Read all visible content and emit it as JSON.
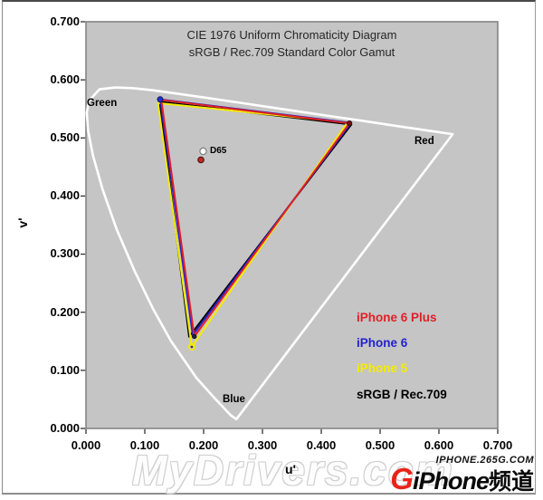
{
  "title": {
    "line1": "CIE 1976 Uniform Chromaticity Diagram",
    "line2": "sRGB / Rec.709 Standard Color Gamut"
  },
  "axes": {
    "x_label": "u'",
    "y_label": "v'",
    "x_tick_labels": [
      "0.000",
      "0.100",
      "0.200",
      "0.300",
      "0.400",
      "0.500",
      "0.600",
      "0.700"
    ],
    "y_tick_labels": [
      "0.700",
      "0.600",
      "0.500",
      "0.400",
      "0.300",
      "0.200",
      "0.100",
      "0.000"
    ]
  },
  "region_labels": {
    "green": "Green",
    "red": "Red",
    "blue": "Blue"
  },
  "d65_label": "D65",
  "legend": [
    {
      "label": "iPhone 6 Plus",
      "color": "#e01f26"
    },
    {
      "label": "iPhone 6",
      "color": "#2222cc"
    },
    {
      "label": "iPhone 5",
      "color": "#f5ec00"
    },
    {
      "label": "sRGB / Rec.709",
      "color": "#000000"
    }
  ],
  "watermark": "MyDrivers.com",
  "logo": {
    "site": "IPHONE.265G.COM",
    "g": "G",
    "name": "iPhone",
    "suffix": "频道"
  },
  "chart_data": {
    "type": "line",
    "title": "CIE 1976 Uniform Chromaticity Diagram",
    "subtitle": "sRGB / Rec.709 Standard Color Gamut",
    "xlabel": "u'",
    "ylabel": "v'",
    "xlim": [
      0,
      0.7
    ],
    "ylim": [
      0,
      0.7
    ],
    "x_ticks": [
      0,
      0.1,
      0.2,
      0.3,
      0.4,
      0.5,
      0.6,
      0.7
    ],
    "y_ticks": [
      0,
      0.1,
      0.2,
      0.3,
      0.4,
      0.5,
      0.6,
      0.7
    ],
    "grid": false,
    "legend_position": "inside lower right",
    "plot_bg": "#c5c5c5",
    "plot_border": "#7f7f7f",
    "locus_color": "#ffffff",
    "series": [
      {
        "name": "iPhone 6 Plus",
        "color": "#e01f26",
        "primaries": {
          "green": {
            "u": 0.128,
            "v": 0.5655
          },
          "red": {
            "u": 0.4478,
            "v": 0.5252
          },
          "blue": {
            "u": 0.1842,
            "v": 0.1582
          }
        }
      },
      {
        "name": "iPhone 6",
        "color": "#2222cc",
        "primaries": {
          "green": {
            "u": 0.1262,
            "v": 0.5662
          },
          "red": {
            "u": 0.4505,
            "v": 0.5258
          },
          "blue": {
            "u": 0.1816,
            "v": 0.1608
          }
        }
      },
      {
        "name": "iPhone 5",
        "color": "#f5ec00",
        "primaries": {
          "green": {
            "u": 0.1225,
            "v": 0.5602
          },
          "red": {
            "u": 0.4446,
            "v": 0.5268
          },
          "blue": {
            "u": 0.1798,
            "v": 0.1404
          }
        }
      },
      {
        "name": "sRGB / Rec.709",
        "color": "#000000",
        "primaries": {
          "green": {
            "u": 0.125,
            "v": 0.5625
          },
          "red": {
            "u": 0.451,
            "v": 0.523
          },
          "blue": {
            "u": 0.1754,
            "v": 0.1579
          }
        }
      }
    ],
    "draw_order": [
      3,
      2,
      1,
      0
    ],
    "white_point": {
      "reference_label": "D65",
      "reference": {
        "u": 0.1992,
        "v": 0.4771
      },
      "measured": {
        "u": 0.1954,
        "v": 0.4623
      }
    },
    "markers": [
      {
        "name": "d65-reference-marker",
        "u": 0.1992,
        "v": 0.4771,
        "r": 3.6,
        "fill": "#ffffff",
        "stroke": "#808080",
        "sw": 1.2
      },
      {
        "name": "measured-white-point-marker",
        "u": 0.1954,
        "v": 0.4623,
        "r": 3.2,
        "fill": "#bf2b24",
        "stroke": "#50100e",
        "sw": 1.2
      },
      {
        "name": "iphone6-green-primary-marker",
        "u": 0.1262,
        "v": 0.5662,
        "r": 3.0,
        "fill": "#2233cc",
        "stroke": "#101060",
        "sw": 1.0
      },
      {
        "name": "iphone6plus-red-primary-marker",
        "u": 0.4478,
        "v": 0.5252,
        "r": 2.6,
        "fill": "#7a1212",
        "stroke": "#3a0808",
        "sw": 1.0
      },
      {
        "name": "blue-vertex-marker",
        "u": 0.1842,
        "v": 0.1582,
        "r": 2.2,
        "fill": "#27203a",
        "stroke": "#111",
        "sw": 1.0
      },
      {
        "name": "iphone5-blue-ring-marker",
        "u": 0.1798,
        "v": 0.1404,
        "r": 3.4,
        "fill": "none",
        "stroke": "#f5ec00",
        "sw": 1.6
      },
      {
        "name": "iphone5-blue-center-dot",
        "u": 0.1798,
        "v": 0.1404,
        "r": 1.3,
        "fill": "#333333",
        "stroke": "none",
        "sw": 0
      }
    ],
    "spectral_locus_uv": [
      [
        0.2557,
        0.0159
      ],
      [
        0.2461,
        0.0226
      ],
      [
        0.2347,
        0.035
      ],
      [
        0.2161,
        0.0549
      ],
      [
        0.1877,
        0.0871
      ],
      [
        0.1441,
        0.151
      ],
      [
        0.1147,
        0.2044
      ],
      [
        0.0828,
        0.2708
      ],
      [
        0.0521,
        0.3427
      ],
      [
        0.0282,
        0.4117
      ],
      [
        0.0119,
        0.4699
      ],
      [
        0.0035,
        0.5131
      ],
      [
        0.0014,
        0.5432
      ],
      [
        0.0046,
        0.5638
      ],
      [
        0.0231,
        0.5837
      ],
      [
        0.0501,
        0.5868
      ],
      [
        0.0792,
        0.5857
      ],
      [
        0.1127,
        0.5821
      ],
      [
        0.1531,
        0.5766
      ],
      [
        0.2026,
        0.5694
      ],
      [
        0.2623,
        0.5605
      ],
      [
        0.3315,
        0.5501
      ],
      [
        0.4035,
        0.5393
      ],
      [
        0.4692,
        0.5296
      ],
      [
        0.5202,
        0.5218
      ],
      [
        0.583,
        0.5125
      ],
      [
        0.6234,
        0.5065
      ]
    ]
  }
}
